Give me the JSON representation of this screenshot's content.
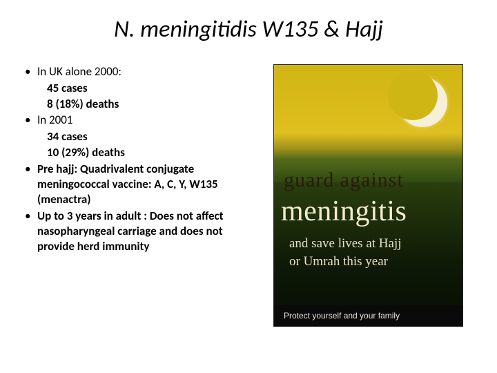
{
  "title": "N. meningitidis W135 & Hajj",
  "bullets": [
    {
      "lead": "In UK alone 2000:",
      "subs": [
        "45 cases",
        "8 (18%) deaths"
      ]
    },
    {
      "lead": "In 2001",
      "subs": [
        "34 cases",
        "10 (29%) deaths"
      ]
    },
    {
      "lead_bold": "Pre hajj: Quadrivalent conjugate meningococcal vaccine:  A, C, Y, W135 (menactra)",
      "subs": []
    },
    {
      "lead_bold": "Up to 3 years in adult : Does not affect nasopharyngeal carriage and does not provide herd immunity",
      "subs": []
    }
  ],
  "poster": {
    "guard_text": "guard against",
    "main_word": "meningitis",
    "script_line1": "and save lives at Hajj",
    "script_line2": "or Umrah this year",
    "footer": "Protect yourself and your family",
    "colors": {
      "sky_top": "#d0b615",
      "ground": "#1a2e0a",
      "moon": "#f6f0d8",
      "text_light": "#f2ead0",
      "text_dark": "#2a1a0a"
    }
  }
}
